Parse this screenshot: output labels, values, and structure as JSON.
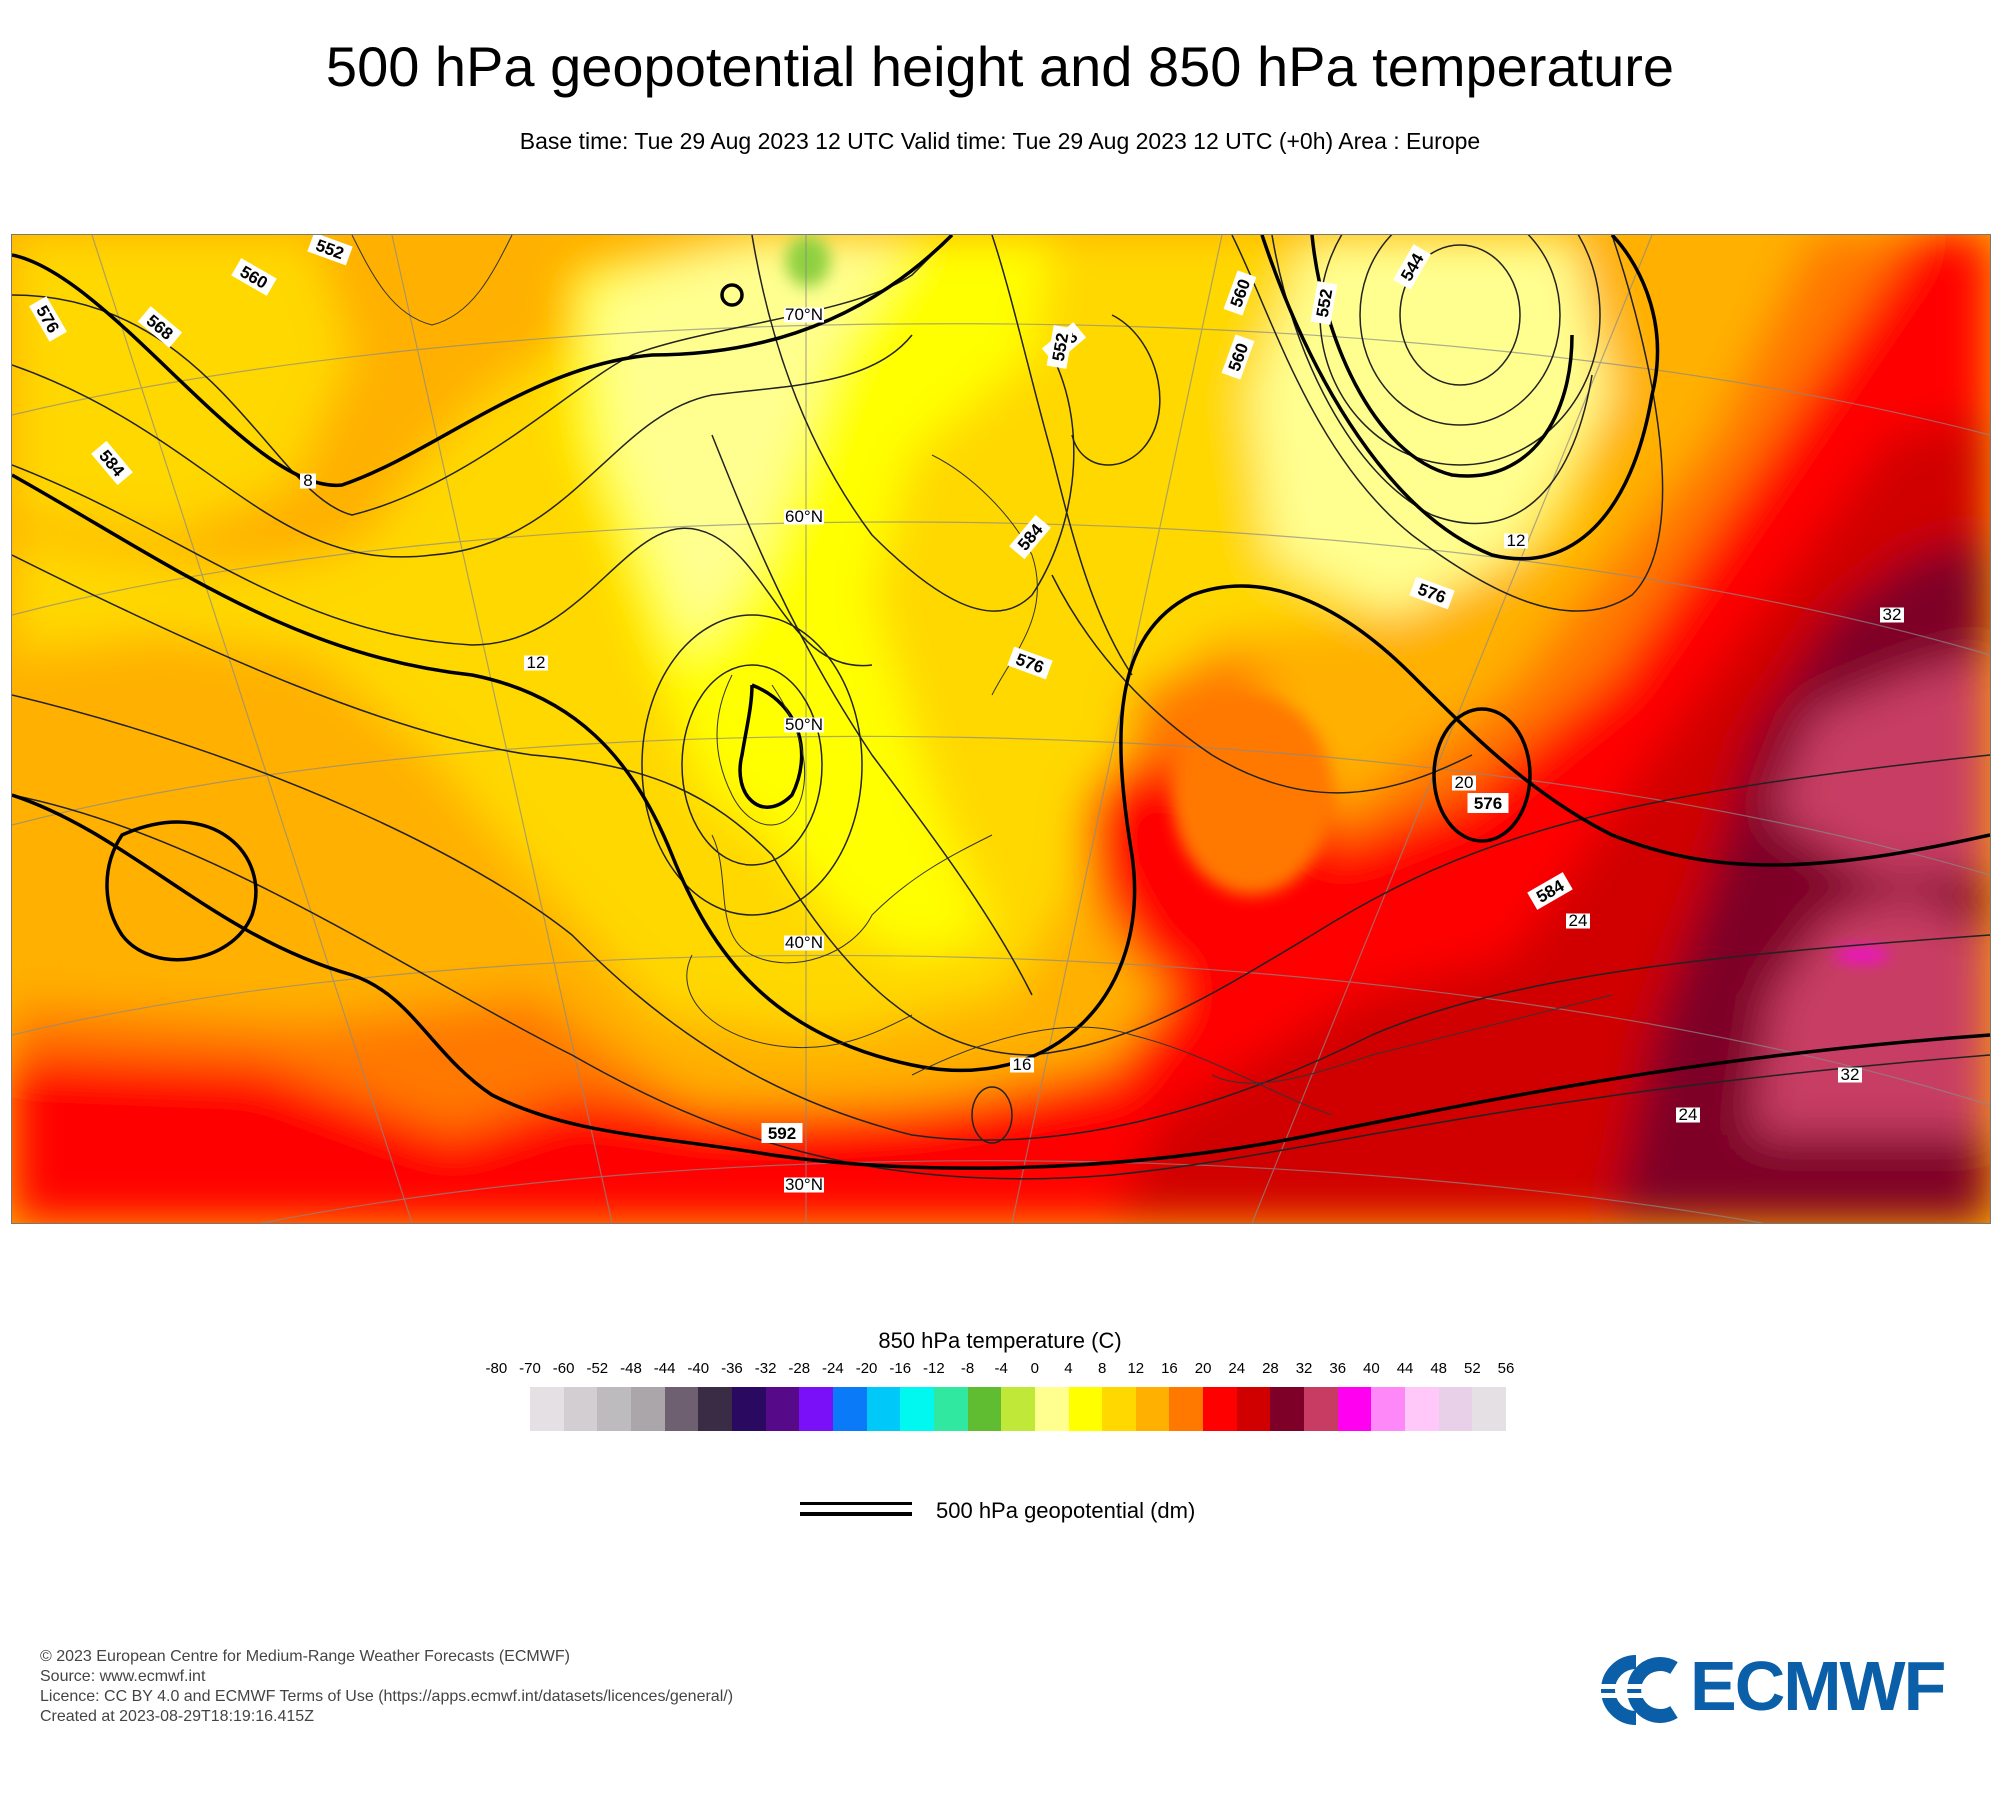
{
  "header": {
    "title": "500 hPa geopotential height and 850 hPa temperature",
    "subtitle": "Base time: Tue 29 Aug 2023 12 UTC Valid time: Tue 29 Aug 2023 12 UTC (+0h) Area : Europe"
  },
  "map": {
    "geopotential_contour_labels_dm": [
      "552",
      "560",
      "568",
      "576",
      "584",
      "592",
      "544",
      "552",
      "560",
      "568",
      "576",
      "584",
      "576",
      "560",
      "552",
      "576",
      "584"
    ],
    "temperature_contour_labels_c": [
      "8",
      "12",
      "24",
      "32",
      "32",
      "20",
      "16",
      "24",
      "12"
    ],
    "latitude_labels": [
      "70°N",
      "60°N",
      "50°N",
      "40°N",
      "30°N"
    ]
  },
  "legend": {
    "colorbar_title": "850 hPa temperature (C)",
    "ticks": [
      "-80",
      "-70",
      "-60",
      "-52",
      "-48",
      "-44",
      "-40",
      "-36",
      "-32",
      "-28",
      "-24",
      "-20",
      "-16",
      "-12",
      "-8",
      "-4",
      "0",
      "4",
      "8",
      "12",
      "16",
      "20",
      "24",
      "28",
      "32",
      "36",
      "40",
      "44",
      "48",
      "52",
      "56"
    ],
    "colors": [
      "#e4e0e4",
      "#d2ced2",
      "#bebbbe",
      "#aaa6aa",
      "#6e6070",
      "#3a2c44",
      "#2a0a60",
      "#560a8a",
      "#7a10f8",
      "#0a7af8",
      "#00c8f8",
      "#00f8f0",
      "#30e8a0",
      "#60bc30",
      "#c0e838",
      "#ffff90",
      "#ffff00",
      "#ffd800",
      "#ffb000",
      "#ff7800",
      "#ff0000",
      "#d00000",
      "#7e0028",
      "#c83c64",
      "#ff00f0",
      "#ff88f8",
      "#ffc8f8",
      "#e8d0e8",
      "#e4e0e4"
    ],
    "line_label": "500 hPa geopotential (dm)"
  },
  "footer": {
    "copyright": "© 2023 European Centre for Medium-Range Weather Forecasts (ECMWF)",
    "source": "Source: www.ecmwf.int",
    "licence": "Licence: CC BY 4.0 and ECMWF Terms of Use (https://apps.ecmwf.int/datasets/licences/general/)",
    "created": "Created at 2023-08-29T18:19:16.415Z",
    "logo_text": "ECMWF"
  }
}
